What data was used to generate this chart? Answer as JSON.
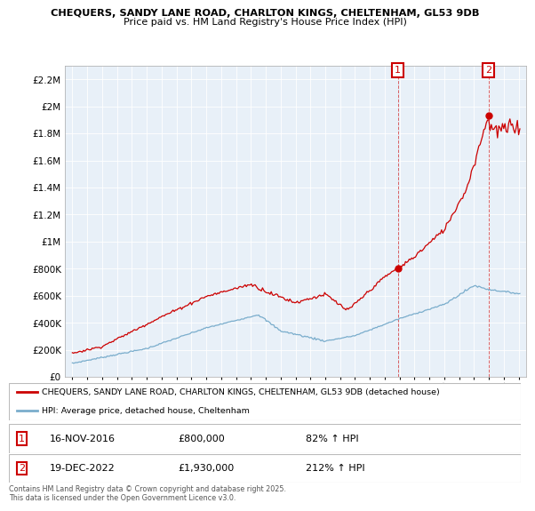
{
  "title1": "CHEQUERS, SANDY LANE ROAD, CHARLTON KINGS, CHELTENHAM, GL53 9DB",
  "title2": "Price paid vs. HM Land Registry's House Price Index (HPI)",
  "legend_red": "CHEQUERS, SANDY LANE ROAD, CHARLTON KINGS, CHELTENHAM, GL53 9DB (detached house)",
  "legend_blue": "HPI: Average price, detached house, Cheltenham",
  "annotation1_date": "16-NOV-2016",
  "annotation1_price": "£800,000",
  "annotation1_hpi": "82% ↑ HPI",
  "annotation1_year": 2016.88,
  "annotation1_value": 800000,
  "annotation2_date": "19-DEC-2022",
  "annotation2_price": "£1,930,000",
  "annotation2_hpi": "212% ↑ HPI",
  "annotation2_year": 2022.97,
  "annotation2_value": 1930000,
  "footer": "Contains HM Land Registry data © Crown copyright and database right 2025.\nThis data is licensed under the Open Government Licence v3.0.",
  "ylim": [
    0,
    2300000
  ],
  "xlim_start": 1994.5,
  "xlim_end": 2025.5,
  "red_color": "#cc0000",
  "blue_color": "#7aadcc",
  "chart_bg": "#e8f0f8",
  "grid_color": "#ffffff",
  "border_color": "#bbbbbb"
}
